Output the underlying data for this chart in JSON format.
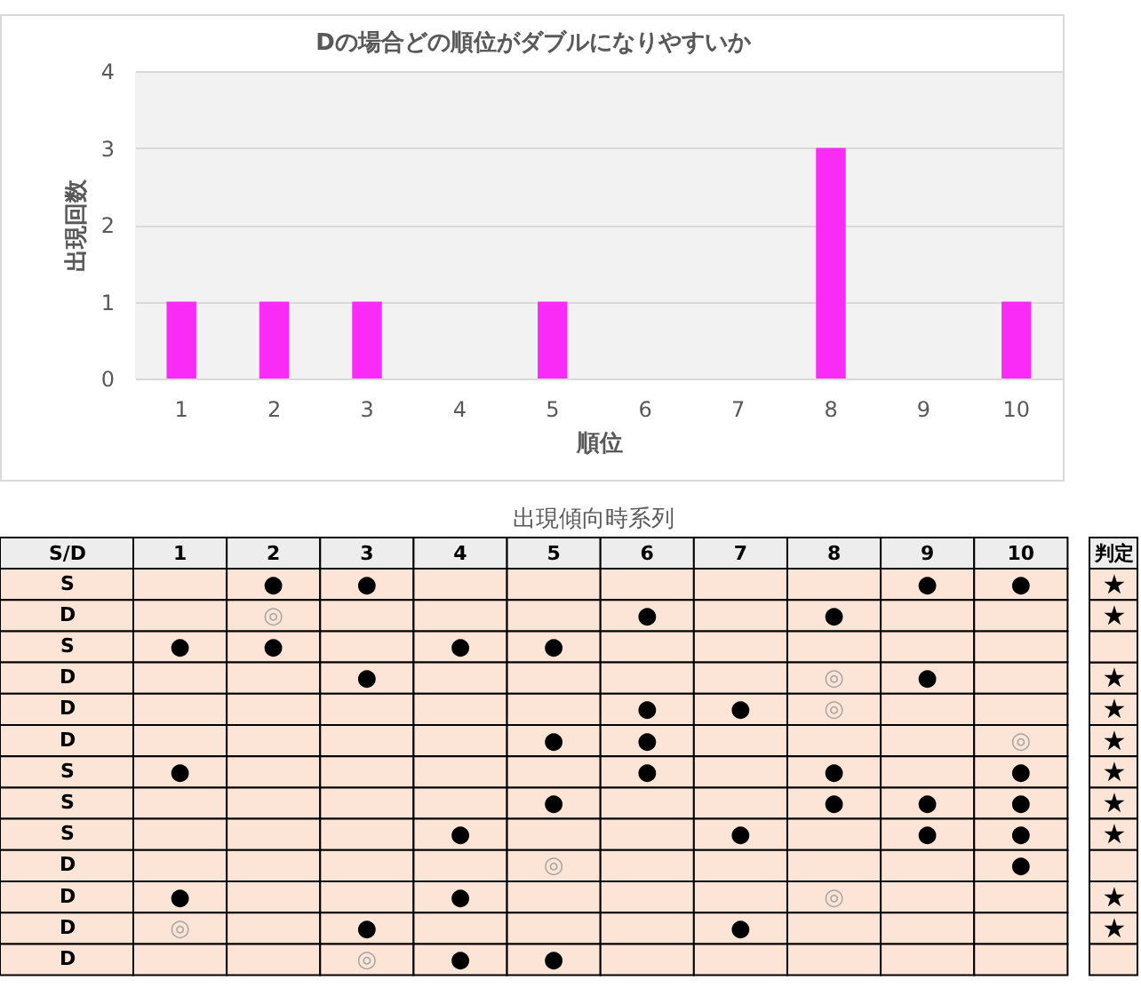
{
  "chart_data": [
    {
      "type": "bar",
      "title": "Dの場合どの順位がダブルになりやすいか",
      "categories": [
        "1",
        "2",
        "3",
        "4",
        "5",
        "6",
        "7",
        "8",
        "9",
        "10"
      ],
      "values": [
        1,
        1,
        1,
        0,
        1,
        0,
        0,
        3,
        0,
        1
      ],
      "color": "#fa2af7",
      "ylim": [
        0,
        4
      ],
      "yticks": [
        0,
        1,
        2,
        3,
        4
      ],
      "xlabel": "順位",
      "ylabel": "出現回数",
      "grid": "y"
    },
    {
      "type": "heatmap",
      "title": "出現傾向時系列",
      "categories": [
        "1",
        "2",
        "3",
        "4",
        "5",
        "6",
        "7",
        "8",
        "9",
        "10"
      ],
      "y_categories": [
        "S",
        "D",
        "S",
        "D",
        "D",
        "D",
        "S",
        "S",
        "S",
        "D",
        "D",
        "D",
        "D"
      ],
      "y2_categories": [
        "★",
        "★",
        null,
        "★",
        "★",
        "★",
        "★",
        "★",
        "★",
        null,
        "★",
        "★",
        null
      ],
      "ylabel": "S/D",
      "y2label": "判定",
      "color": "#fce4d6",
      "cells": [
        [
          null,
          null,
          null,
          null,
          null,
          null,
          null,
          null,
          null,
          null
        ],
        [
          null,
          null,
          null,
          null,
          null,
          null,
          null,
          null,
          null,
          null
        ],
        [
          null,
          null,
          null,
          null,
          null,
          null,
          null,
          null,
          null,
          null
        ],
        [
          null,
          null,
          null,
          null,
          null,
          null,
          null,
          null,
          null,
          null
        ],
        [
          null,
          null,
          null,
          null,
          null,
          null,
          null,
          null,
          null,
          null
        ],
        [
          null,
          null,
          null,
          null,
          null,
          null,
          null,
          null,
          null,
          null
        ],
        [
          null,
          null,
          null,
          null,
          null,
          null,
          null,
          null,
          null,
          null
        ],
        [
          null,
          null,
          null,
          null,
          null,
          null,
          null,
          null,
          null,
          null
        ],
        [
          null,
          null,
          null,
          null,
          null,
          null,
          null,
          null,
          null,
          null
        ],
        [
          null,
          null,
          null,
          null,
          null,
          null,
          null,
          null,
          null,
          null
        ],
        [
          null,
          null,
          null,
          null,
          null,
          null,
          null,
          null,
          null,
          null
        ],
        [
          null,
          null,
          null,
          null,
          null,
          null,
          null,
          null,
          null,
          null
        ],
        [
          null,
          null,
          null,
          null,
          null,
          null,
          null,
          null,
          null,
          null
        ]
      ],
      "cell_labels": [
        [
          null,
          "●",
          "●",
          null,
          null,
          null,
          null,
          null,
          "●",
          "●"
        ],
        [
          null,
          "◎",
          null,
          null,
          null,
          "●",
          null,
          "●",
          null,
          null
        ],
        [
          "●",
          "●",
          null,
          "●",
          "●",
          null,
          null,
          null,
          null,
          null
        ],
        [
          null,
          null,
          "●",
          null,
          null,
          null,
          null,
          "◎",
          "●",
          null
        ],
        [
          null,
          null,
          null,
          null,
          null,
          "●",
          "●",
          "◎",
          null,
          null
        ],
        [
          null,
          null,
          null,
          null,
          "●",
          "●",
          null,
          null,
          null,
          "◎"
        ],
        [
          "●",
          null,
          null,
          null,
          null,
          "●",
          null,
          "●",
          null,
          "●"
        ],
        [
          null,
          null,
          null,
          null,
          "●",
          null,
          null,
          "●",
          "●",
          "●"
        ],
        [
          null,
          null,
          null,
          "●",
          null,
          null,
          "●",
          null,
          "●",
          "●"
        ],
        [
          null,
          null,
          null,
          null,
          "◎",
          null,
          null,
          null,
          null,
          "●"
        ],
        [
          "●",
          null,
          null,
          "●",
          null,
          null,
          null,
          "◎",
          null,
          null
        ],
        [
          "◎",
          null,
          "●",
          null,
          null,
          null,
          "●",
          null,
          null,
          null
        ],
        [
          null,
          null,
          "◎",
          "●",
          "●",
          null,
          null,
          null,
          null,
          null
        ]
      ]
    }
  ]
}
